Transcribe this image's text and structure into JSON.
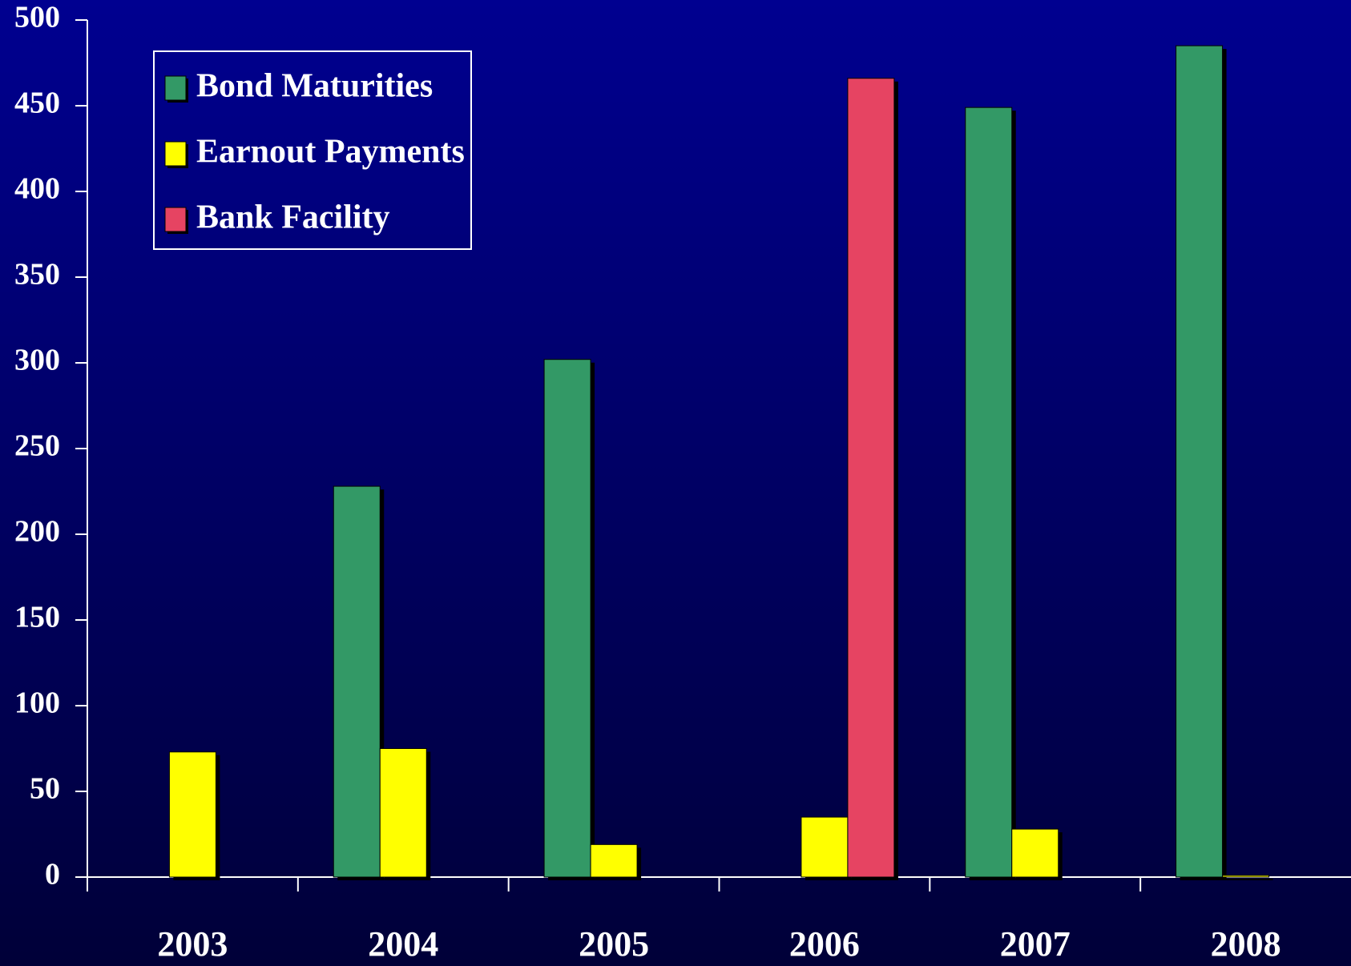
{
  "chart_data": {
    "type": "bar",
    "categories": [
      "2003",
      "2004",
      "2005",
      "2006",
      "2007",
      "2008"
    ],
    "series": [
      {
        "name": "Bond Maturities",
        "color": "#339966",
        "values": [
          null,
          228,
          302,
          null,
          449,
          485
        ]
      },
      {
        "name": "Earnout Payments",
        "color": "#ffff00",
        "values": [
          73,
          75,
          19,
          35,
          28,
          1
        ]
      },
      {
        "name": "Bank Facility",
        "color": "#e64462",
        "values": [
          null,
          null,
          null,
          466,
          null,
          null
        ]
      }
    ],
    "ylim": [
      0,
      500
    ],
    "yticks": [
      0,
      50,
      100,
      150,
      200,
      250,
      300,
      350,
      400,
      450,
      500
    ],
    "grid": false,
    "legend": "upper left"
  }
}
